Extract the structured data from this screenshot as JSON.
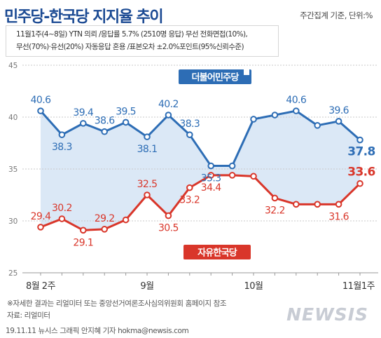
{
  "header": {
    "title": "민주당-한국당 지지율 추이",
    "subtitle": "주간집계 기준, 단위:%"
  },
  "info_lines": [
    "11월1주(4~8일) YTN 의뢰 /응답률 5.7% (2510명 응답) 무선 전화면접(10%),",
    "무선(70%)·유선(20%) 자동응답 혼용 /표본오차 ±2.0%포인트(95%신뢰수준)"
  ],
  "footer": {
    "note": "※자세한 결과는 리얼미터 또는 중앙선거여론조사심의위원회 홈페이지 참조",
    "source": "자료: 리얼미터",
    "credit": "19.11.11 뉴시스 그래픽 안지혜 기자 hokma@newsis.com",
    "watermark": "NEWSIS"
  },
  "chart_data": {
    "type": "line",
    "ylim": [
      25,
      45
    ],
    "yticks": [
      25,
      30,
      35,
      40,
      45
    ],
    "x_tick_labels": [
      {
        "index": 0,
        "label": "8월 2주"
      },
      {
        "index": 5,
        "label": "9월"
      },
      {
        "index": 10,
        "label": "10월"
      },
      {
        "index": 16,
        "label": "11월1주"
      }
    ],
    "series": [
      {
        "name": "더불어민주당",
        "color": "#2d6db5",
        "values": [
          40.6,
          38.3,
          39.4,
          38.6,
          39.5,
          38.1,
          40.2,
          38.3,
          35.3,
          35.3,
          39.8,
          40.2,
          40.6,
          39.2,
          39.6,
          37.8
        ],
        "labels": [
          "40.6",
          "38.3",
          "39.4",
          "38.6",
          "39.5",
          "38.1",
          "40.2",
          "38.3",
          "35.3",
          "",
          "",
          "",
          "40.6",
          "",
          "39.6",
          "37.8"
        ]
      },
      {
        "name": "자유한국당",
        "color": "#d9362a",
        "values": [
          29.4,
          30.2,
          29.1,
          29.2,
          30.1,
          32.5,
          30.5,
          33.2,
          34.4,
          34.4,
          34.3,
          32.2,
          31.6,
          31.6,
          31.6,
          33.6
        ],
        "labels": [
          "29.4",
          "30.2",
          "29.1",
          "29.2",
          "",
          "32.5",
          "30.5",
          "33.2",
          "34.4",
          "",
          "",
          "32.2",
          "",
          "",
          "31.6",
          "33.6"
        ]
      }
    ],
    "grid": true
  },
  "colors": {
    "title": "#1b4a93",
    "minju": "#2d6db5",
    "hankuk": "#d9362a",
    "band": "#dbe8f6"
  }
}
